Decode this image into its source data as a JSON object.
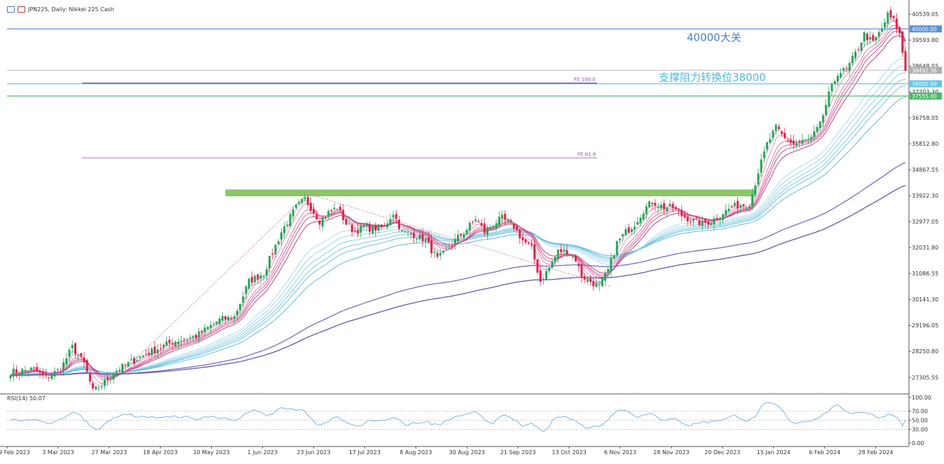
{
  "header": {
    "symbol_label": "JPN225, Daily:  Nikkei 225 Cash"
  },
  "rsi_panel": {
    "label": "RSI(14) 50.07",
    "value": 50.07
  },
  "annotations": {
    "level_40000": "40000大关",
    "level_38000": "支撑阻力转换位38000",
    "fe100": "FE 100.0",
    "fe618": "FE 61.8"
  },
  "price_tags": {
    "p40000": "40000.00",
    "p38492": "38492.36",
    "p38000": "38000.00",
    "p37555": "37555.00",
    "p38648": "38648.55",
    "p37703": "37703.30"
  },
  "colors": {
    "bull": "#26a65b",
    "bear": "#e0224a",
    "blue_line": "#5b8fd6",
    "cyan_line": "#5fc6e8",
    "green_line": "#4cb86a",
    "resistance_zone": "#8cc66a",
    "fe_line": "#b46ec8",
    "rsi_line": "#7fb3e0"
  },
  "chart_data": {
    "type": "candlestick",
    "title": "JPN225, Daily:  Nikkei 225 Cash",
    "y_ticks": [
      "40539.05",
      "39593.80",
      "38648.55",
      "37703.30",
      "36758.05",
      "35812.80",
      "34867.55",
      "33922.30",
      "32977.05",
      "32031.80",
      "31086.55",
      "30141.30",
      "29196.05",
      "28250.80",
      "27305.55"
    ],
    "x_ticks": [
      "9 Feb 2023",
      "3 Mar 2023",
      "27 Mar 2023",
      "18 Apr 2023",
      "10 May 2023",
      "1 Jun 2023",
      "23 Jun 2023",
      "17 Jul 2023",
      "8 Aug 2023",
      "30 Aug 2023",
      "21 Sep 2023",
      "13 Oct 2023",
      "6 Nov 2023",
      "28 Nov 2023",
      "20 Dec 2023",
      "15 Jan 2024",
      "6 Feb 2024",
      "28 Feb 2024"
    ],
    "ylim": [
      26750,
      40850
    ],
    "horizontal_levels": [
      40000,
      38492.36,
      38000,
      37555
    ],
    "resistance_zone": [
      33900,
      34150
    ],
    "price_path": [
      [
        0,
        27500
      ],
      [
        8,
        27600
      ],
      [
        12,
        27300
      ],
      [
        17,
        27600
      ],
      [
        21,
        28400
      ],
      [
        25,
        27800
      ],
      [
        28,
        26800
      ],
      [
        31,
        27000
      ],
      [
        35,
        27500
      ],
      [
        40,
        27800
      ],
      [
        45,
        28100
      ],
      [
        55,
        28600
      ],
      [
        63,
        28800
      ],
      [
        71,
        29400
      ],
      [
        76,
        29500
      ],
      [
        81,
        30800
      ],
      [
        86,
        31100
      ],
      [
        92,
        32600
      ],
      [
        97,
        33500
      ],
      [
        100,
        33800
      ],
      [
        102,
        33500
      ],
      [
        105,
        33000
      ],
      [
        108,
        33300
      ],
      [
        111,
        33500
      ],
      [
        114,
        32900
      ],
      [
        117,
        32600
      ],
      [
        120,
        32800
      ],
      [
        123,
        32700
      ],
      [
        127,
        32800
      ],
      [
        130,
        33300
      ],
      [
        133,
        32600
      ],
      [
        137,
        32500
      ],
      [
        141,
        32300
      ],
      [
        145,
        31600
      ],
      [
        148,
        31900
      ],
      [
        152,
        32400
      ],
      [
        155,
        32700
      ],
      [
        158,
        33100
      ],
      [
        161,
        32600
      ],
      [
        164,
        32900
      ],
      [
        167,
        33100
      ],
      [
        171,
        32800
      ],
      [
        174,
        32300
      ],
      [
        177,
        32000
      ],
      [
        180,
        30800
      ],
      [
        183,
        31300
      ],
      [
        186,
        31900
      ],
      [
        189,
        31900
      ],
      [
        192,
        31600
      ],
      [
        194,
        31000
      ],
      [
        197,
        30800
      ],
      [
        200,
        30600
      ],
      [
        203,
        31200
      ],
      [
        206,
        32200
      ],
      [
        209,
        32600
      ],
      [
        212,
        32900
      ],
      [
        215,
        33400
      ],
      [
        218,
        33700
      ],
      [
        222,
        33500
      ],
      [
        225,
        33500
      ],
      [
        228,
        33200
      ],
      [
        232,
        33000
      ],
      [
        235,
        32900
      ],
      [
        238,
        33000
      ],
      [
        242,
        33300
      ],
      [
        245,
        33500
      ],
      [
        248,
        33600
      ],
      [
        251,
        33600
      ],
      [
        254,
        34800
      ],
      [
        257,
        35800
      ],
      [
        260,
        36400
      ],
      [
        263,
        36000
      ],
      [
        266,
        35800
      ],
      [
        269,
        35900
      ],
      [
        272,
        36000
      ],
      [
        275,
        36500
      ],
      [
        278,
        37600
      ],
      [
        281,
        38400
      ],
      [
        284,
        38500
      ],
      [
        287,
        39100
      ],
      [
        290,
        39800
      ],
      [
        293,
        39500
      ],
      [
        296,
        40000
      ],
      [
        298,
        40500
      ],
      [
        300,
        40300
      ],
      [
        302,
        39800
      ],
      [
        304,
        38500
      ]
    ],
    "rsi_ticks": [
      "100.00",
      "70.00",
      "50.00",
      "30.00",
      "0.00"
    ],
    "rsi_levels": [
      70,
      30
    ]
  }
}
